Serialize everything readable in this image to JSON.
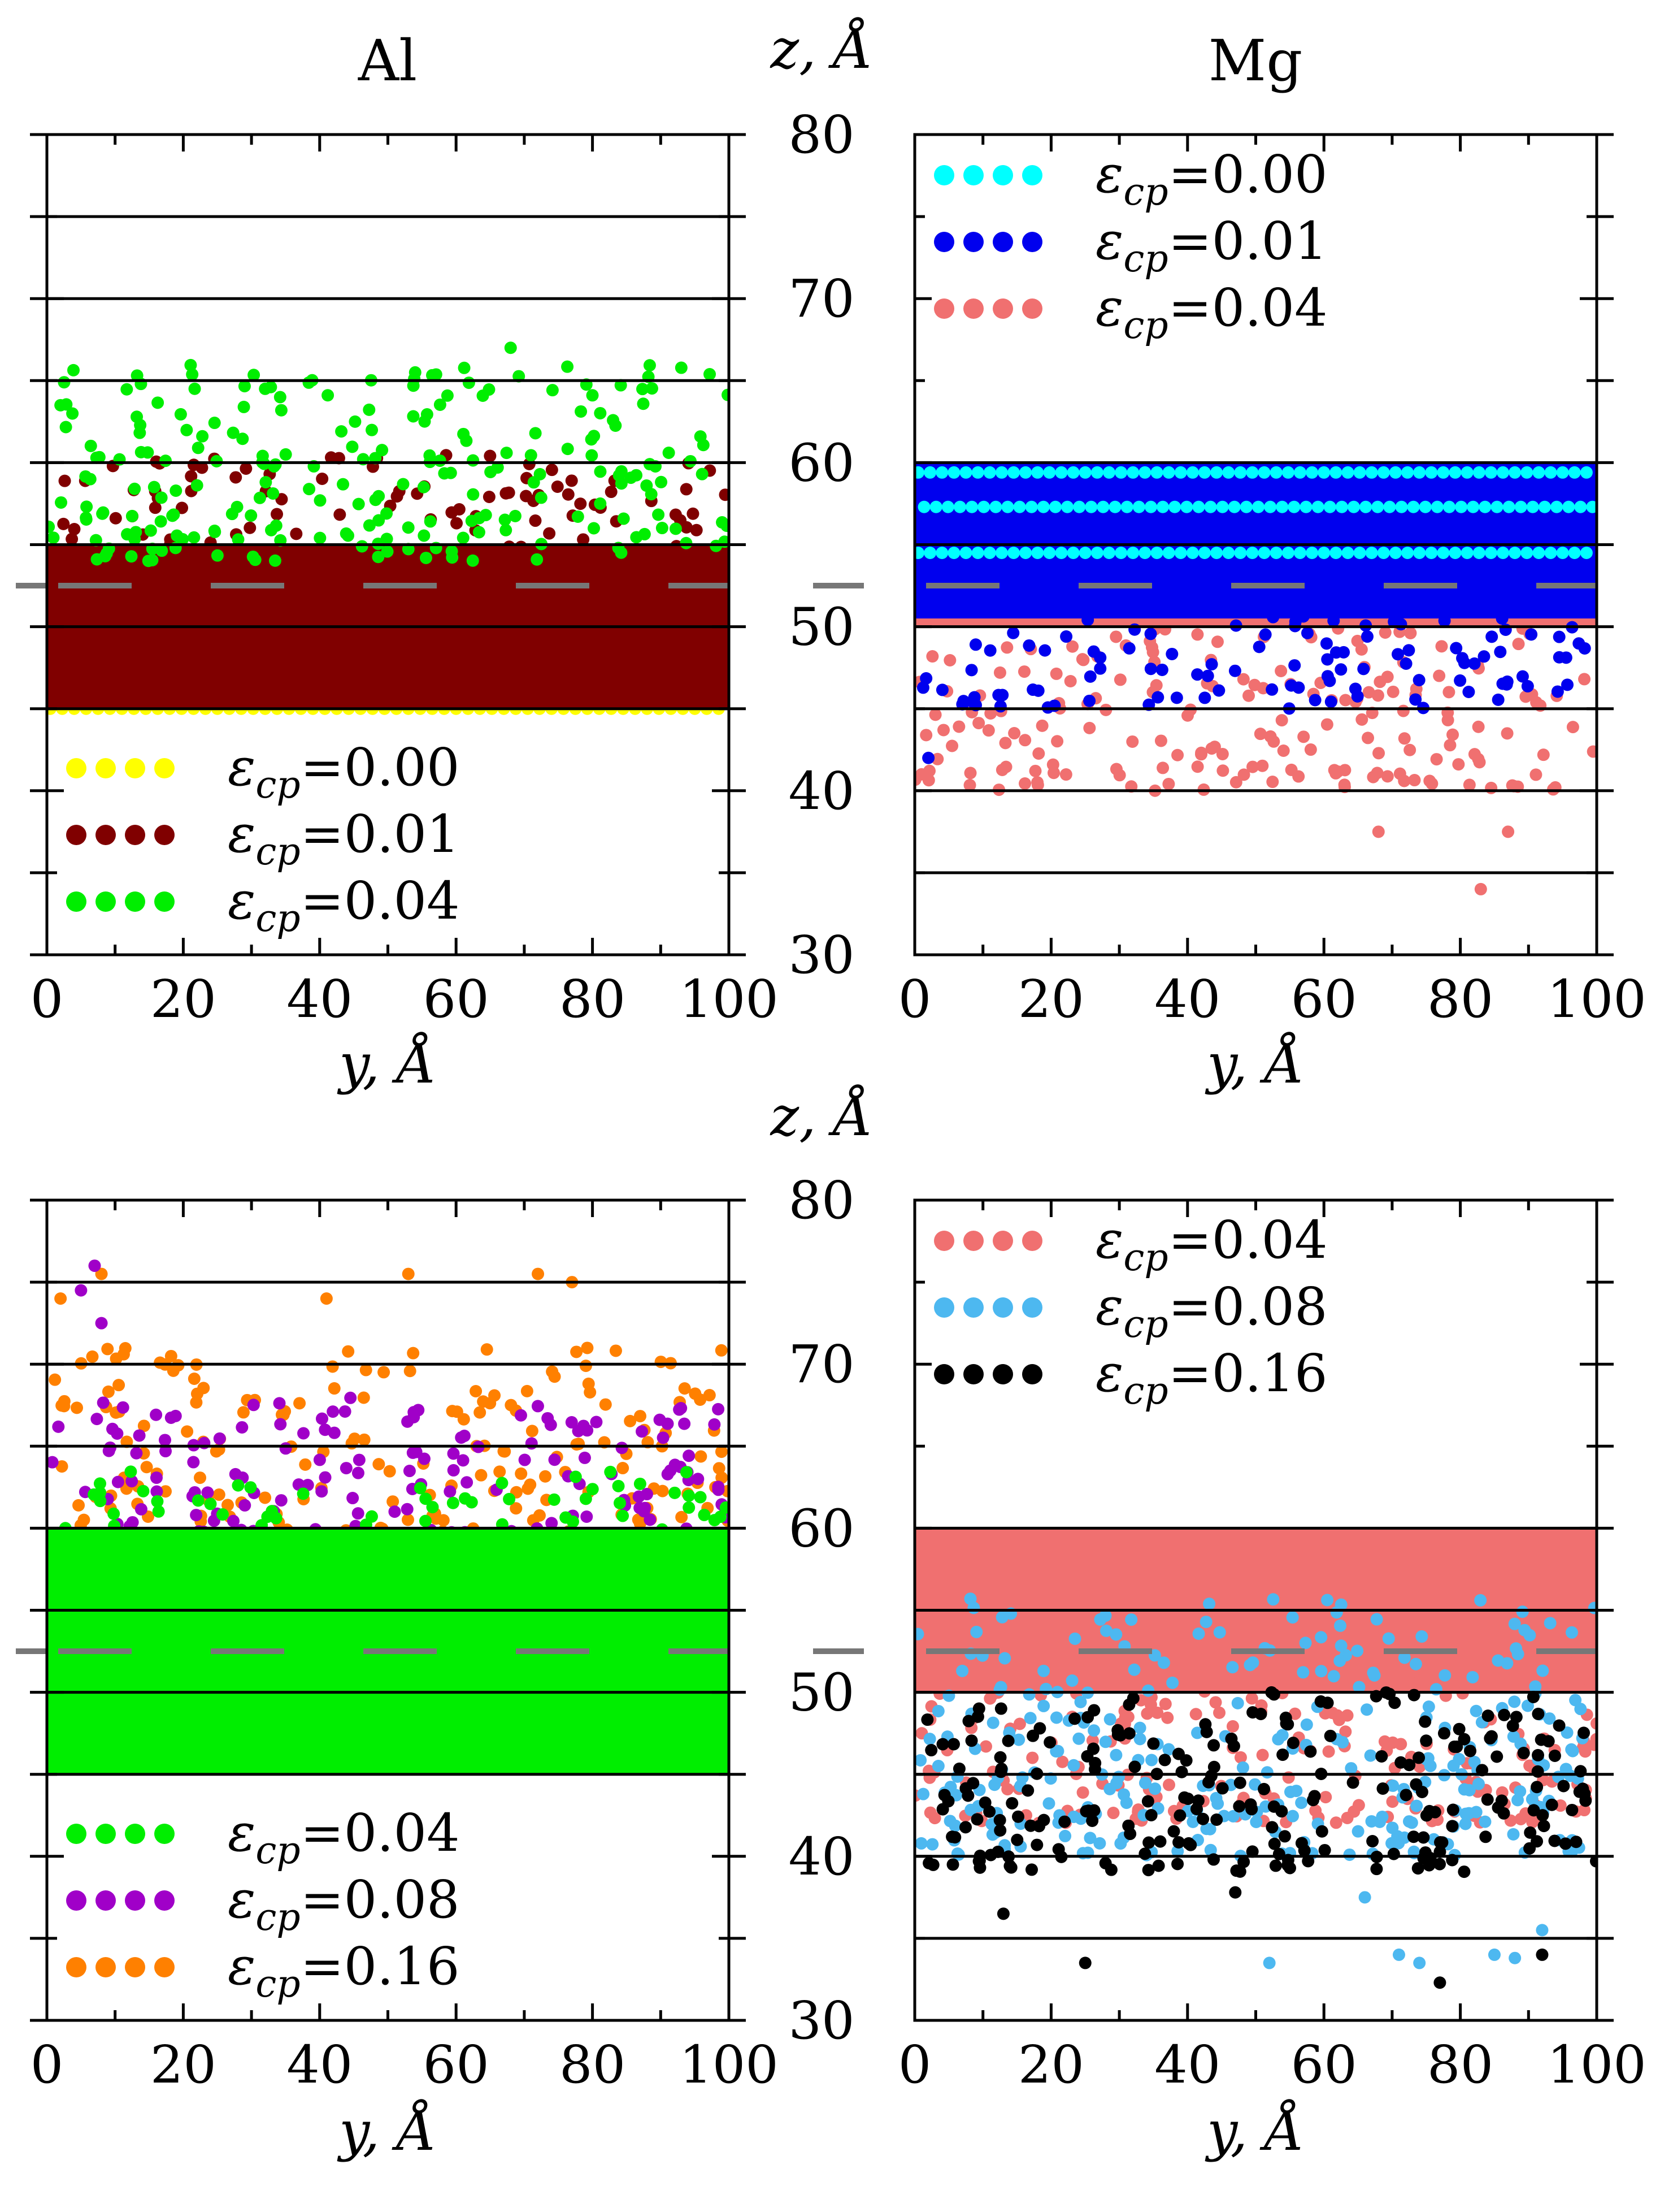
{
  "chart_data": {
    "type": "scatter",
    "z_axis_label": "z, Å",
    "y_axis_label": "y, Å",
    "xlim": [
      0,
      100
    ],
    "ylim": [
      30,
      80
    ],
    "x_ticks": [
      0,
      20,
      40,
      60,
      80,
      100
    ],
    "z_ticks": [
      30,
      40,
      50,
      60,
      70,
      80
    ],
    "z_tick_labels": [
      "30",
      "40",
      "50",
      "60",
      "70",
      "80"
    ],
    "reference_lines_z": [
      35,
      40,
      45,
      50,
      55,
      60,
      65,
      70,
      75
    ],
    "dashed_line_z": 52.5,
    "panels": [
      {
        "name": "al-top",
        "title": "Al",
        "hlines": [
          45,
          50,
          55,
          60,
          65,
          70,
          75
        ],
        "legend_position": "bottom-left",
        "series": [
          {
            "name": "ε_cp=0.00",
            "symbol": "ε",
            "sub": "cp",
            "value": "=0.00",
            "color": "#ffff00",
            "description": "ordered lattice",
            "lattice_rows": [
              45,
              46,
              47,
              48,
              49,
              50,
              51,
              52
            ],
            "y_spacing": 1.75
          },
          {
            "name": "ε_cp=0.01",
            "symbol": "ε",
            "sub": "cp",
            "value": "=0.01",
            "color": "#800000",
            "fill_band": [
              45,
              55
            ],
            "scatter_band": [
              53,
              60.5
            ],
            "scatter_count": 120
          },
          {
            "name": "ε_cp=0.04",
            "symbol": "ε",
            "sub": "cp",
            "value": "=0.04",
            "color": "#00ee00",
            "scatter_band": [
              54,
              66
            ],
            "scatter_count": 230,
            "outliers": [
              [
                68,
                67
              ],
              [
                54,
                65.5
              ],
              [
                32,
                64.5
              ],
              [
                2,
                63.5
              ]
            ]
          }
        ]
      },
      {
        "name": "mg-top",
        "title": "Mg",
        "hlines": [
          35,
          40,
          45,
          50,
          55,
          60
        ],
        "legend_position": "top-left",
        "series": [
          {
            "name": "ε_cp=0.04",
            "symbol": "ε",
            "sub": "cp",
            "value": "=0.04",
            "color": "#f07070",
            "fill_band": [
              50,
              60
            ],
            "scatter_band": [
              40,
              50
            ],
            "scatter_count": 190,
            "outliers": [
              [
                83,
                34
              ],
              [
                68,
                37.5
              ],
              [
                87,
                37.5
              ],
              [
                1,
                41
              ]
            ]
          },
          {
            "name": "ε_cp=0.01",
            "symbol": "ε",
            "sub": "cp",
            "value": "=0.01",
            "color": "#0000ee",
            "fill_band": [
              50.5,
              60
            ],
            "scatter_band": [
              45,
              51.5
            ],
            "scatter_count": 120,
            "outliers": [
              [
                2,
                42
              ]
            ]
          },
          {
            "name": "ε_cp=0.00",
            "symbol": "ε",
            "sub": "cp",
            "value": "=0.00",
            "color": "#00ffff",
            "description": "ordered lattice",
            "lattice_rows": [
              54.5,
              57.3,
              59.4
            ],
            "y_spacing": 1.75
          }
        ],
        "legend_order": [
          2,
          1,
          0
        ]
      },
      {
        "name": "al-bottom",
        "title": "",
        "hlines": [
          45,
          50,
          55,
          60,
          65,
          70,
          75
        ],
        "legend_position": "bottom-left",
        "series": [
          {
            "name": "ε_cp=0.16",
            "symbol": "ε",
            "sub": "cp",
            "value": "=0.16",
            "color": "#ff8000",
            "scatter_band": [
              59,
              71
            ],
            "scatter_count": 210,
            "outliers": [
              [
                8,
                75.5
              ],
              [
                53,
                75.5
              ],
              [
                72,
                75.5
              ],
              [
                77,
                75
              ],
              [
                2,
                74
              ],
              [
                41,
                74
              ]
            ]
          },
          {
            "name": "ε_cp=0.08",
            "symbol": "ε",
            "sub": "cp",
            "value": "=0.08",
            "color": "#a000c8",
            "scatter_band": [
              57,
              68
            ],
            "scatter_count": 220,
            "outliers": [
              [
                7,
                76
              ],
              [
                5,
                74.5
              ],
              [
                8,
                72.5
              ]
            ]
          },
          {
            "name": "ε_cp=0.04",
            "symbol": "ε",
            "sub": "cp",
            "value": "=0.04",
            "color": "#00ee00",
            "fill_band": [
              45,
              60
            ],
            "scatter_band": [
              56,
              63.5
            ],
            "scatter_count": 140
          }
        ],
        "legend_order": [
          2,
          1,
          0
        ]
      },
      {
        "name": "mg-bottom",
        "title": "",
        "hlines": [
          35,
          40,
          45,
          50,
          55,
          60
        ],
        "legend_position": "top-left",
        "series": [
          {
            "name": "ε_cp=0.04",
            "symbol": "ε",
            "sub": "cp",
            "value": "=0.04",
            "color": "#f07070",
            "fill_band": [
              50,
              60
            ],
            "scatter_band": [
              42,
              52
            ],
            "scatter_count": 200
          },
          {
            "name": "ε_cp=0.08",
            "symbol": "ε",
            "sub": "cp",
            "value": "=0.08",
            "color": "#4db8f0",
            "scatter_band": [
              40,
              56
            ],
            "scatter_count": 300,
            "outliers": [
              [
                52,
                33.5
              ],
              [
                71,
                34
              ],
              [
                74,
                33.5
              ],
              [
                85,
                34
              ],
              [
                88,
                33.8
              ],
              [
                92,
                35.5
              ],
              [
                66,
                37.5
              ]
            ]
          },
          {
            "name": "ε_cp=0.16",
            "symbol": "ε",
            "sub": "cp",
            "value": "=0.16",
            "color": "#000000",
            "scatter_band": [
              39,
              50
            ],
            "scatter_count": 240,
            "outliers": [
              [
                25,
                33.5
              ],
              [
                77,
                32.3
              ],
              [
                92,
                34
              ],
              [
                13,
                36.5
              ],
              [
                47,
                37.8
              ]
            ]
          }
        ]
      }
    ]
  }
}
